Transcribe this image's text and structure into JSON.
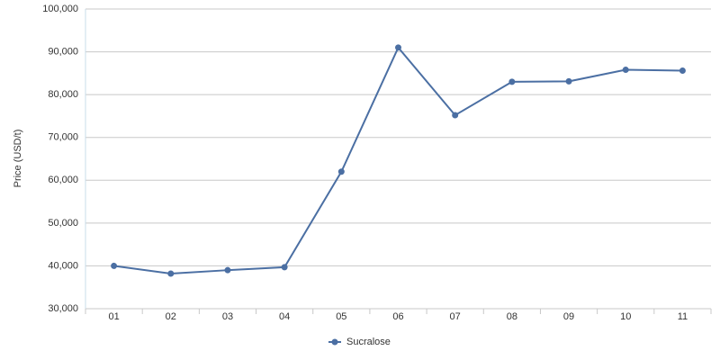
{
  "chart_data": {
    "type": "line",
    "y_label": "Price (USD/t)",
    "categories": [
      "01",
      "02",
      "03",
      "04",
      "05",
      "06",
      "07",
      "08",
      "09",
      "10",
      "11"
    ],
    "series": [
      {
        "name": "Sucralose",
        "color": "#4b6fa3",
        "values": [
          40000,
          38200,
          39000,
          39700,
          62000,
          91000,
          75200,
          83000,
          83100,
          85800,
          85600
        ]
      }
    ],
    "ylim": [
      30000,
      100000
    ],
    "yticks": [
      {
        "value": 30000,
        "label": "30,000"
      },
      {
        "value": 40000,
        "label": "40,000"
      },
      {
        "value": 50000,
        "label": "50,000"
      },
      {
        "value": 60000,
        "label": "60,000"
      },
      {
        "value": 70000,
        "label": "70,000"
      },
      {
        "value": 80000,
        "label": "80,000"
      },
      {
        "value": 90000,
        "label": "90,000"
      },
      {
        "value": 100000,
        "label": "100,000"
      }
    ],
    "grid": true
  }
}
